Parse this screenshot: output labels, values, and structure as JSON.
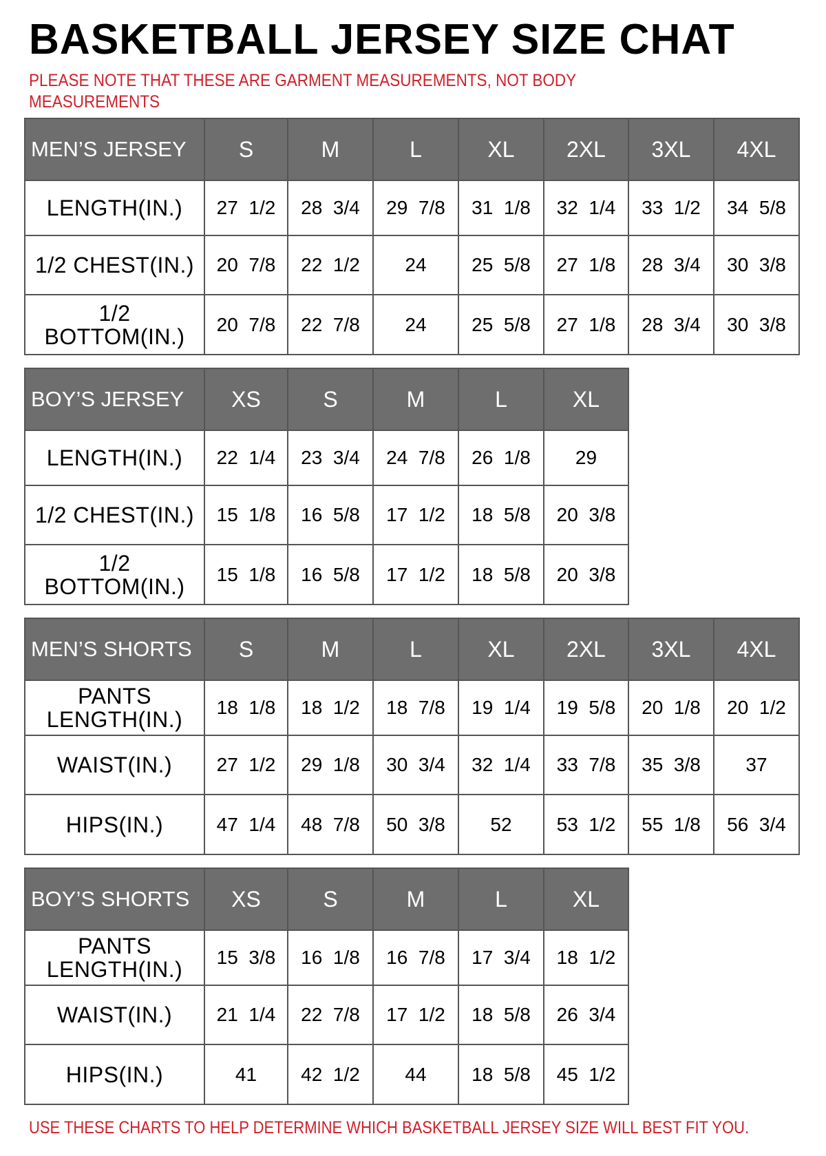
{
  "title": "BASKETBALL JERSEY SIZE CHAT",
  "note": "PLEASE NOTE THAT THESE ARE GARMENT MEASUREMENTS, NOT BODY MEASUREMENTS",
  "footer": "USE THESE CHARTS TO HELP DETERMINE WHICH BASKETBALL JERSEY SIZE WILL BEST FIT YOU.",
  "colors": {
    "header_bg": "#6e6e6e",
    "note_red": "#d0202a"
  },
  "tables": [
    {
      "heading": "MEN’S JERSEY",
      "sizes": [
        "S",
        "M",
        "L",
        "XL",
        "2XL",
        "3XL",
        "4XL"
      ],
      "rows": [
        {
          "label": "LENGTH(IN.)",
          "values": [
            "27  1/2",
            "28  3/4",
            "29  7/8",
            "31  1/8",
            "32  1/4",
            "33  1/2",
            "34  5/8"
          ]
        },
        {
          "label": "1/2  CHEST(IN.)",
          "values": [
            "20  7/8",
            "22  1/2",
            "24",
            "25  5/8",
            "27  1/8",
            "28  3/4",
            "30  3/8"
          ]
        },
        {
          "label": "1/2  BOTTOM(IN.)",
          "values": [
            "20  7/8",
            "22  7/8",
            "24",
            "25  5/8",
            "27  1/8",
            "28  3/4",
            "30  3/8"
          ]
        }
      ]
    },
    {
      "heading": "BOY’S JERSEY",
      "sizes": [
        "XS",
        "S",
        "M",
        "L",
        "XL"
      ],
      "rows": [
        {
          "label": "LENGTH(IN.)",
          "values": [
            "22  1/4",
            "23  3/4",
            "24  7/8",
            "26  1/8",
            "29"
          ]
        },
        {
          "label": "1/2  CHEST(IN.)",
          "values": [
            "15  1/8",
            "16  5/8",
            "17  1/2",
            "18  5/8",
            "20  3/8"
          ]
        },
        {
          "label": "1/2  BOTTOM(IN.)",
          "values": [
            "15  1/8",
            "16  5/8",
            "17  1/2",
            "18  5/8",
            "20  3/8"
          ]
        }
      ]
    },
    {
      "heading": "MEN’S SHORTS",
      "sizes": [
        "S",
        "M",
        "L",
        "XL",
        "2XL",
        "3XL",
        "4XL"
      ],
      "rows": [
        {
          "label": "PANTS LENGTH(IN.)",
          "values": [
            "18  1/8",
            "18  1/2",
            "18  7/8",
            "19  1/4",
            "19  5/8",
            "20  1/8",
            "20  1/2"
          ]
        },
        {
          "label": "WAIST(IN.)",
          "values": [
            "27  1/2",
            "29  1/8",
            "30  3/4",
            "32  1/4",
            "33  7/8",
            "35  3/8",
            "37"
          ]
        },
        {
          "label": "HIPS(IN.)",
          "values": [
            "47  1/4",
            "48  7/8",
            "50  3/8",
            "52",
            "53  1/2",
            "55  1/8",
            "56  3/4"
          ]
        }
      ]
    },
    {
      "heading": "BOY’S SHORTS",
      "sizes": [
        "XS",
        "S",
        "M",
        "L",
        "XL"
      ],
      "rows": [
        {
          "label": "PANTS LENGTH(IN.)",
          "values": [
            "15  3/8",
            "16  1/8",
            "16  7/8",
            "17  3/4",
            "18  1/2"
          ]
        },
        {
          "label": "WAIST(IN.)",
          "values": [
            "21  1/4",
            "22  7/8",
            "17  1/2",
            "18  5/8",
            "26  3/4"
          ]
        },
        {
          "label": "HIPS(IN.)",
          "values": [
            "41",
            "42  1/2",
            "44",
            "18  5/8",
            "45  1/2"
          ]
        }
      ]
    }
  ]
}
